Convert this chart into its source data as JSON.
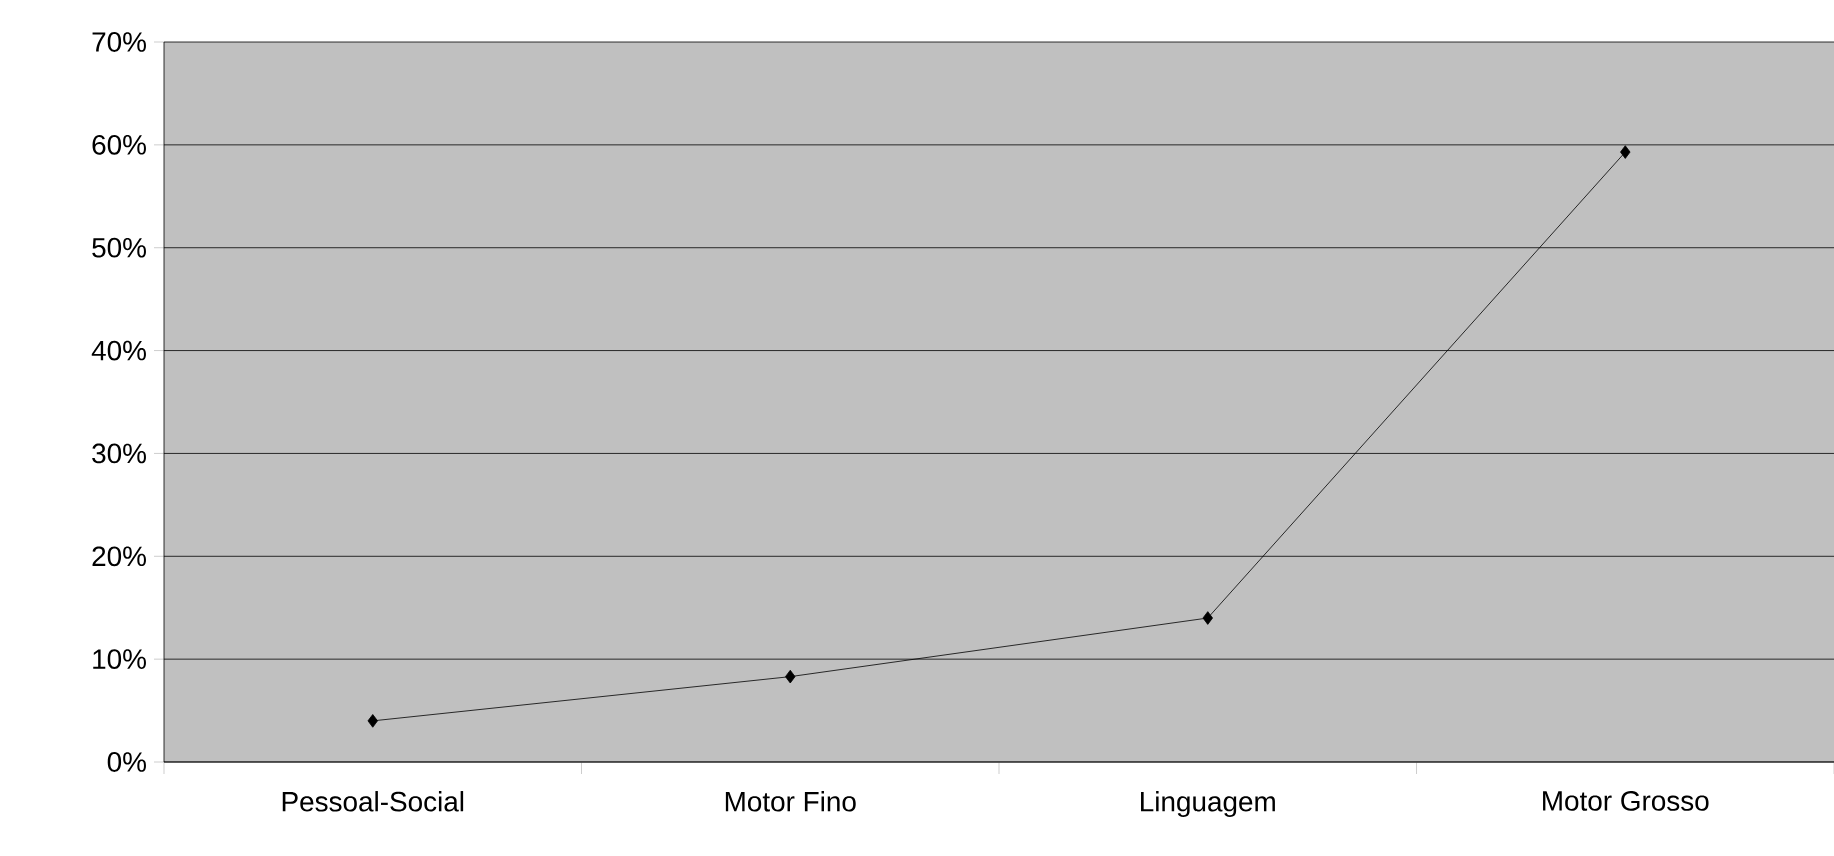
{
  "chart_data": {
    "type": "line",
    "categories": [
      "Pessoal-Social",
      "Motor Fino",
      "Linguagem",
      "Motor Grosso"
    ],
    "series": [
      {
        "color": "#000000",
        "values": [
          4,
          8.3,
          14,
          59.3
        ]
      }
    ],
    "ylim": [
      0,
      70
    ],
    "yticks": [
      {
        "value": 0,
        "label": "0%"
      },
      {
        "value": 10,
        "label": "10%"
      },
      {
        "value": 20,
        "label": "20%"
      },
      {
        "value": 30,
        "label": "30%"
      },
      {
        "value": 40,
        "label": "40%"
      },
      {
        "value": 50,
        "label": "50%"
      },
      {
        "value": 60,
        "label": "60%"
      },
      {
        "value": 70,
        "label": "70%"
      }
    ],
    "grid": "y",
    "marker": "diamond",
    "line_style": "solid"
  }
}
